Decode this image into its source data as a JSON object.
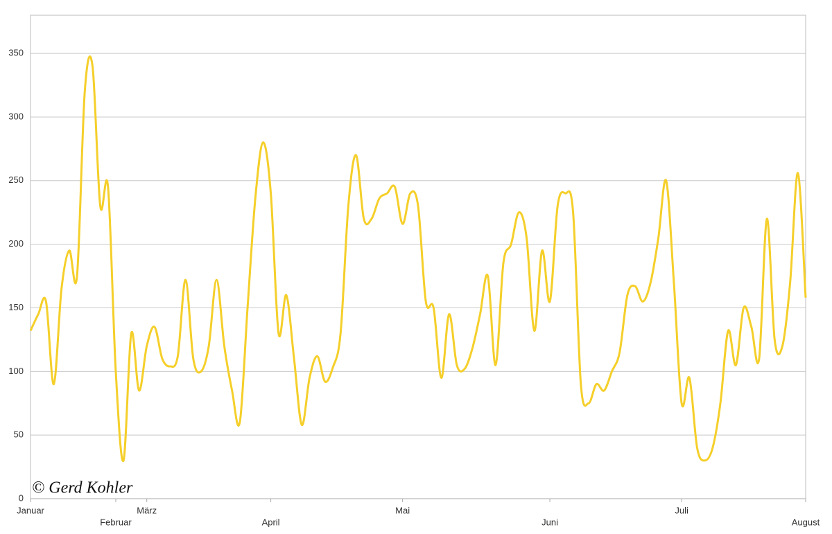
{
  "chart_data": {
    "type": "line",
    "watermark": "© Gerd Kohler",
    "categories": [
      "Januar",
      null,
      null,
      null,
      null,
      null,
      null,
      null,
      null,
      null,
      null,
      "Februar",
      null,
      null,
      null,
      "März",
      null,
      null,
      null,
      null,
      null,
      null,
      null,
      null,
      null,
      null,
      null,
      null,
      null,
      null,
      null,
      "April",
      null,
      null,
      null,
      null,
      null,
      null,
      null,
      null,
      null,
      null,
      null,
      null,
      null,
      null,
      null,
      null,
      "Mai",
      null,
      null,
      null,
      null,
      null,
      null,
      null,
      null,
      null,
      null,
      null,
      null,
      null,
      null,
      null,
      null,
      null,
      null,
      "Juni",
      null,
      null,
      null,
      null,
      null,
      null,
      null,
      null,
      null,
      null,
      null,
      null,
      null,
      null,
      null,
      null,
      "Juli",
      null,
      null,
      null,
      null,
      null,
      null,
      null,
      null,
      null,
      null,
      null,
      null,
      null,
      null,
      null,
      "August"
    ],
    "series": [
      {
        "color": "#f5cf2a",
        "values": [
          132,
          145,
          155,
          90,
          165,
          195,
          175,
          320,
          340,
          230,
          245,
          100,
          30,
          130,
          85,
          120,
          135,
          110,
          104,
          112,
          172,
          110,
          100,
          120,
          172,
          120,
          85,
          60,
          150,
          236,
          280,
          240,
          130,
          160,
          110,
          58,
          95,
          112,
          92,
          103,
          130,
          230,
          270,
          220,
          220,
          236,
          240,
          245,
          216,
          240,
          230,
          155,
          150,
          95,
          145,
          105,
          102,
          118,
          145,
          175,
          105,
          185,
          200,
          225,
          205,
          132,
          195,
          155,
          230,
          240,
          225,
          90,
          75,
          90,
          85,
          100,
          115,
          160,
          167,
          155,
          170,
          205,
          250,
          170,
          75,
          95,
          40,
          30,
          40,
          75,
          132,
          105,
          150,
          135,
          110,
          220,
          125,
          120,
          170,
          256,
          158
        ]
      }
    ],
    "ylim": [
      0,
      380
    ],
    "yticks": [
      0,
      50,
      100,
      150,
      200,
      250,
      300,
      350
    ],
    "grid": true
  }
}
